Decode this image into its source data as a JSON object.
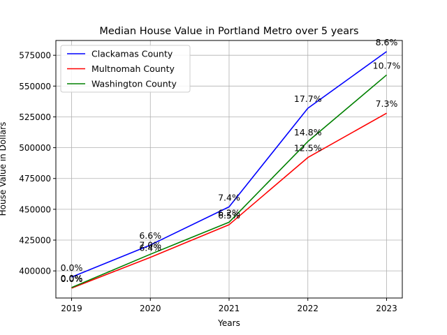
{
  "chart_data": {
    "type": "line",
    "title": "Median House Value in Portland Metro over 5 years",
    "xlabel": "Years",
    "ylabel": "House Value in Dollars",
    "x": [
      2019,
      2020,
      2021,
      2022,
      2023
    ],
    "x_tick_labels": [
      "2019",
      "2020",
      "2021",
      "2022",
      "2023"
    ],
    "ylim": [
      378000,
      587000
    ],
    "y_ticks": [
      400000,
      425000,
      450000,
      475000,
      500000,
      525000,
      550000,
      575000
    ],
    "y_tick_labels": [
      "400000",
      "425000",
      "450000",
      "475000",
      "500000",
      "525000",
      "550000",
      "575000"
    ],
    "grid": true,
    "legend_position": "upper-left",
    "series": [
      {
        "name": "Clackamas County",
        "color": "#0000ff",
        "values": [
          395000,
          421000,
          452000,
          532000,
          578000
        ],
        "labels": [
          "0.0%",
          "6.6%",
          "7.4%",
          "17.7%",
          "8.6%"
        ]
      },
      {
        "name": "Multnomah County",
        "color": "#ff0000",
        "values": [
          386000,
          411000,
          437500,
          492000,
          528000
        ],
        "labels": [
          "0.0%",
          "6.4%",
          "6.5%",
          "12.5%",
          "7.3%"
        ]
      },
      {
        "name": "Washington County",
        "color": "#008000",
        "values": [
          386500,
          413500,
          439500,
          505000,
          559000
        ],
        "labels": [
          "0.0%",
          "7.0%",
          "6.2%",
          "14.8%",
          "10.7%"
        ]
      }
    ]
  }
}
